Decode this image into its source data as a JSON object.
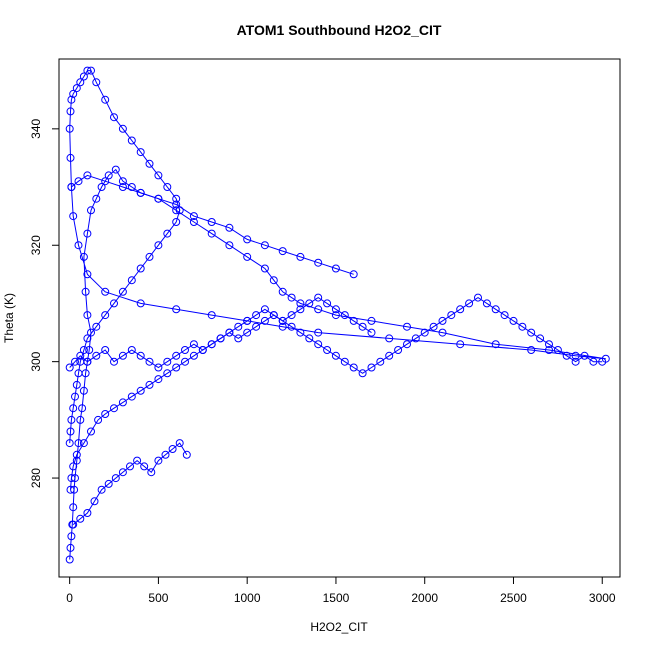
{
  "chart_data": {
    "type": "scatter",
    "title": "ATOM1 Southbound H2O2_CIT",
    "xlabel": "H2O2_CIT",
    "ylabel": "Theta (K)",
    "xlim": [
      -60,
      3100
    ],
    "ylim": [
      263,
      352
    ],
    "xticks": [
      0,
      500,
      1000,
      1500,
      2000,
      2500,
      3000
    ],
    "yticks": [
      280,
      300,
      320,
      340
    ],
    "marker": "open-circle",
    "connected": true,
    "grid": false,
    "legend": "none",
    "color": "#0000ff",
    "series": [
      {
        "x": [
          0,
          5,
          10,
          15,
          20,
          25,
          30,
          40,
          50,
          60,
          70,
          80,
          90,
          100,
          110,
          120,
          100,
          90,
          80,
          100,
          120,
          150,
          180,
          220,
          260,
          300,
          350,
          400,
          500,
          600,
          700,
          800,
          900,
          1000,
          1100,
          1150,
          1200,
          1250,
          1300,
          1400,
          1500,
          1700,
          1900,
          2100,
          2400,
          2700,
          3020,
          2850,
          2600,
          2200,
          1800,
          1400,
          1200,
          1000,
          800,
          600,
          400,
          200,
          100,
          50,
          20,
          10,
          5,
          0,
          5,
          10,
          20,
          40,
          60,
          80,
          100,
          120,
          150,
          200,
          250,
          300,
          350,
          400,
          450,
          500,
          550,
          600,
          620,
          600,
          550,
          500,
          450,
          400,
          350,
          300,
          250,
          200,
          150,
          100,
          80,
          60,
          50,
          40,
          30,
          20,
          10,
          5,
          0
        ],
        "y": [
          266,
          268,
          270,
          272,
          275,
          278,
          280,
          283,
          286,
          290,
          292,
          295,
          298,
          300,
          302,
          305,
          308,
          312,
          318,
          322,
          326,
          328,
          330,
          332,
          333,
          331,
          330,
          329,
          328,
          326,
          324,
          322,
          320,
          318,
          316,
          314,
          312,
          311,
          310,
          309,
          308,
          307,
          306,
          305,
          303,
          302,
          300.5,
          301,
          302,
          303,
          304,
          305,
          306,
          307,
          308,
          309,
          310,
          312,
          315,
          320,
          325,
          330,
          335,
          340,
          343,
          345,
          346,
          347,
          348,
          349,
          350,
          350,
          348,
          345,
          342,
          340,
          338,
          336,
          334,
          332,
          330,
          328,
          326,
          324,
          322,
          320,
          318,
          316,
          314,
          312,
          310,
          308,
          306,
          304,
          302,
          300,
          298,
          296,
          294,
          292,
          290,
          288,
          286
        ]
      },
      {
        "x": [
          0,
          30,
          60,
          100,
          150,
          200,
          250,
          300,
          350,
          400,
          450,
          500,
          550,
          600,
          650,
          700,
          750,
          800,
          850,
          900,
          950,
          1000,
          1050,
          1100,
          1150,
          1200,
          1250,
          1300,
          1350,
          1400,
          1450,
          1500,
          1550,
          1600,
          1650,
          1700,
          1750,
          1800,
          1850,
          1900,
          1950,
          2000,
          2050,
          2100,
          2150,
          2200,
          2250,
          2300,
          2350,
          2400,
          2450,
          2500,
          2550,
          2600,
          2650,
          2700,
          2750,
          2800,
          2850,
          2900,
          2950,
          3000
        ],
        "y": [
          299,
          300,
          301,
          300,
          301,
          302,
          300,
          301,
          302,
          301,
          300,
          299,
          300,
          301,
          302,
          303,
          302,
          303,
          304,
          305,
          304,
          305,
          306,
          307,
          308,
          307,
          306,
          305,
          304,
          303,
          302,
          301,
          300,
          299,
          298,
          299,
          300,
          301,
          302,
          303,
          304,
          305,
          306,
          307,
          308,
          309,
          310,
          311,
          310,
          309,
          308,
          307,
          306,
          305,
          304,
          303,
          302,
          301,
          300,
          301,
          300,
          300
        ]
      },
      {
        "x": [
          5,
          10,
          20,
          40,
          80,
          120,
          160,
          200,
          250,
          300,
          350,
          400,
          450,
          500,
          550,
          600,
          650,
          700,
          750,
          800,
          850,
          900,
          950,
          1000,
          1050,
          1100,
          1150,
          1200,
          1250,
          1300,
          1350,
          1400,
          1450,
          1500,
          1550,
          1600,
          1650,
          1700
        ],
        "y": [
          278,
          280,
          282,
          284,
          286,
          288,
          290,
          291,
          292,
          293,
          294,
          295,
          296,
          297,
          298,
          299,
          300,
          301,
          302,
          303,
          304,
          305,
          306,
          307,
          308,
          309,
          308,
          307,
          308,
          309,
          310,
          311,
          310,
          309,
          308,
          307,
          306,
          305
        ]
      },
      {
        "x": [
          10,
          50,
          100,
          200,
          300,
          400,
          500,
          600,
          700,
          800,
          900,
          1000,
          1100,
          1200,
          1300,
          1400,
          1500,
          1600
        ],
        "y": [
          330,
          331,
          332,
          331,
          330,
          329,
          328,
          327,
          325,
          324,
          323,
          321,
          320,
          319,
          318,
          317,
          316,
          315
        ]
      },
      {
        "x": [
          20,
          60,
          100,
          140,
          180,
          220,
          260,
          300,
          340,
          380,
          420,
          460,
          500,
          540,
          580,
          620,
          660
        ],
        "y": [
          272,
          273,
          274,
          276,
          278,
          279,
          280,
          281,
          282,
          283,
          282,
          281,
          283,
          284,
          285,
          286,
          284
        ]
      }
    ]
  }
}
